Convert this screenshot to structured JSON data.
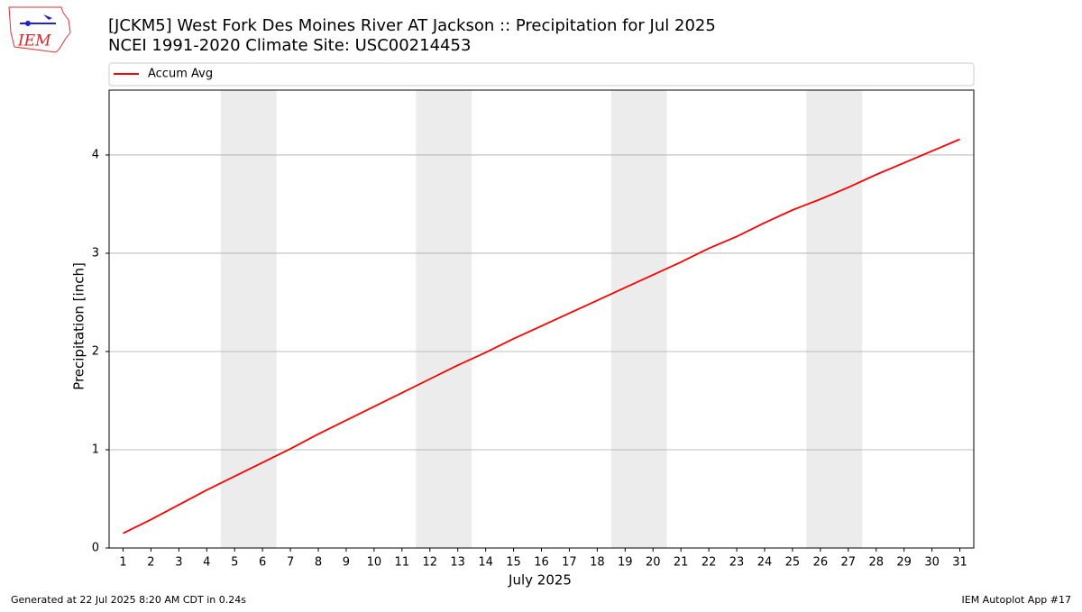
{
  "chart_data": {
    "type": "line",
    "title": "[JCKM5] West Fork Des Moines River  AT Jackson :: Precipitation for Jul 2025",
    "subtitle": "NCEI 1991-2020 Climate Site: USC00214453",
    "logo_text": "IEM",
    "x_label": "July 2025",
    "y_label": "Precipitation [inch]",
    "x": [
      1,
      2,
      3,
      4,
      5,
      6,
      7,
      8,
      9,
      10,
      11,
      12,
      13,
      14,
      15,
      16,
      17,
      18,
      19,
      20,
      21,
      22,
      23,
      24,
      25,
      26,
      27,
      28,
      29,
      30,
      31
    ],
    "series": [
      {
        "name": "Accum Avg",
        "color": "#ff0000",
        "values": [
          0.15,
          0.29,
          0.44,
          0.59,
          0.73,
          0.87,
          1.01,
          1.16,
          1.3,
          1.44,
          1.58,
          1.72,
          1.86,
          1.99,
          2.13,
          2.26,
          2.39,
          2.52,
          2.65,
          2.78,
          2.91,
          3.05,
          3.17,
          3.31,
          3.44,
          3.55,
          3.67,
          3.8,
          3.92,
          4.04,
          4.16
        ]
      }
    ],
    "shaded_spans": [
      [
        4.5,
        6.5
      ],
      [
        11.5,
        13.5
      ],
      [
        18.5,
        20.5
      ],
      [
        25.5,
        27.5
      ]
    ],
    "shade_color": "#ececec",
    "xlim": [
      0.5,
      31.5
    ],
    "ylim": [
      0,
      4.66
    ],
    "xticks": [
      1,
      2,
      3,
      4,
      5,
      6,
      7,
      8,
      9,
      10,
      11,
      12,
      13,
      14,
      15,
      16,
      17,
      18,
      19,
      20,
      21,
      22,
      23,
      24,
      25,
      26,
      27,
      28,
      29,
      30,
      31
    ],
    "yticks": [
      0,
      1,
      2,
      3,
      4
    ],
    "grid": true,
    "legend": "top",
    "footer_left": "Generated at 22 Jul 2025 8:20 AM CDT in 0.24s",
    "footer_right": "IEM Autoplot App #17"
  }
}
